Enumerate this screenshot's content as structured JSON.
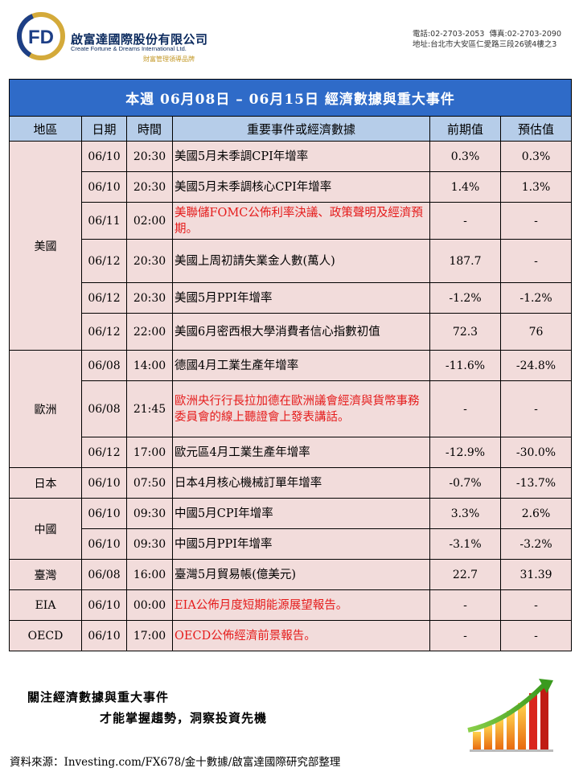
{
  "header": {
    "logo_text": "FD",
    "company_cn": "啟富達國際股份有限公司",
    "company_en": "Create Fortune & Dreams International Ltd.",
    "tagline": "財富管理領導品牌",
    "phone": "電話:02-2703-2053",
    "fax": "傳真:02-2703-2090",
    "address": "地址:台北市大安區仁愛路三段26號4樓之3"
  },
  "table": {
    "title": "本週 06月08日 – 06月15日 經濟數據與重大事件",
    "columns": [
      "地區",
      "日期",
      "時間",
      "重要事件或經濟數據",
      "前期值",
      "預估值"
    ],
    "groups": [
      {
        "region": "美國",
        "rows": [
          {
            "date": "06/10",
            "time": "20:30",
            "event": "美國5月未季調CPI年增率",
            "prev": "0.3%",
            "forecast": "0.3%",
            "highlight": false
          },
          {
            "date": "06/10",
            "time": "20:30",
            "event": "美國5月未季調核心CPI年增率",
            "prev": "1.4%",
            "forecast": "1.3%",
            "highlight": false
          },
          {
            "date": "06/11",
            "time": "02:00",
            "event": "美聯儲FOMC公佈利率決議、政策聲明及經濟預期。",
            "prev": "-",
            "forecast": "-",
            "highlight": true
          },
          {
            "date": "06/12",
            "time": "20:30",
            "event": "美國上周初請失業金人數(萬人)",
            "prev": "187.7",
            "forecast": "-",
            "highlight": false
          },
          {
            "date": "06/12",
            "time": "20:30",
            "event": "美國5月PPI年增率",
            "prev": "-1.2%",
            "forecast": "-1.2%",
            "highlight": false
          },
          {
            "date": "06/12",
            "time": "22:00",
            "event": "美國6月密西根大學消費者信心指數初值",
            "prev": "72.3",
            "forecast": "76",
            "highlight": false
          }
        ]
      },
      {
        "region": "歐洲",
        "rows": [
          {
            "date": "06/08",
            "time": "14:00",
            "event": "德國4月工業生產年增率",
            "prev": "-11.6%",
            "forecast": "-24.8%",
            "highlight": false
          },
          {
            "date": "06/08",
            "time": "21:45",
            "event": "歐洲央行行長拉加德在歐洲議會經濟與貨幣事務委員會的線上聽證會上發表講話。",
            "prev": "-",
            "forecast": "-",
            "highlight": true
          },
          {
            "date": "06/12",
            "time": "17:00",
            "event": "歐元區4月工業生產年增率",
            "prev": "-12.9%",
            "forecast": "-30.0%",
            "highlight": false
          }
        ]
      },
      {
        "region": "日本",
        "rows": [
          {
            "date": "06/10",
            "time": "07:50",
            "event": "日本4月核心機械訂單年增率",
            "prev": "-0.7%",
            "forecast": "-13.7%",
            "highlight": false
          }
        ]
      },
      {
        "region": "中國",
        "rows": [
          {
            "date": "06/10",
            "time": "09:30",
            "event": "中國5月CPI年增率",
            "prev": "3.3%",
            "forecast": "2.6%",
            "highlight": false
          },
          {
            "date": "06/10",
            "time": "09:30",
            "event": "中國5月PPI年增率",
            "prev": "-3.1%",
            "forecast": "-3.2%",
            "highlight": false
          }
        ]
      },
      {
        "region": "臺灣",
        "rows": [
          {
            "date": "06/08",
            "time": "16:00",
            "event": "臺灣5月貿易帳(億美元)",
            "prev": "22.7",
            "forecast": "31.39",
            "highlight": false
          }
        ]
      },
      {
        "region": "EIA",
        "rows": [
          {
            "date": "06/10",
            "time": "00:00",
            "event": "EIA公佈月度短期能源展望報告。",
            "prev": "-",
            "forecast": "-",
            "highlight": true
          }
        ]
      },
      {
        "region": "OECD",
        "rows": [
          {
            "date": "06/10",
            "time": "17:00",
            "event": "OECD公佈經濟前景報告。",
            "prev": "-",
            "forecast": "-",
            "highlight": true
          }
        ]
      }
    ]
  },
  "footer": {
    "slogan_line1": "關注經濟數據與重大事件",
    "slogan_line2": "才能掌握趨勢，洞察投資先機",
    "source": "資料來源：Investing.com/FX678/金十數據/啟富達國際研究部整理"
  },
  "colors": {
    "title_bg": "#2f6bc8",
    "header_bg": "#b6cde9",
    "cell_bg": "#f2dcdb",
    "highlight_text": "#e51b1b",
    "brand_navy": "#0b2a5e",
    "brand_gold": "#c49a2a"
  },
  "icons": [
    "fd-logo-icon",
    "rising-bar-chart-arrow-icon"
  ]
}
